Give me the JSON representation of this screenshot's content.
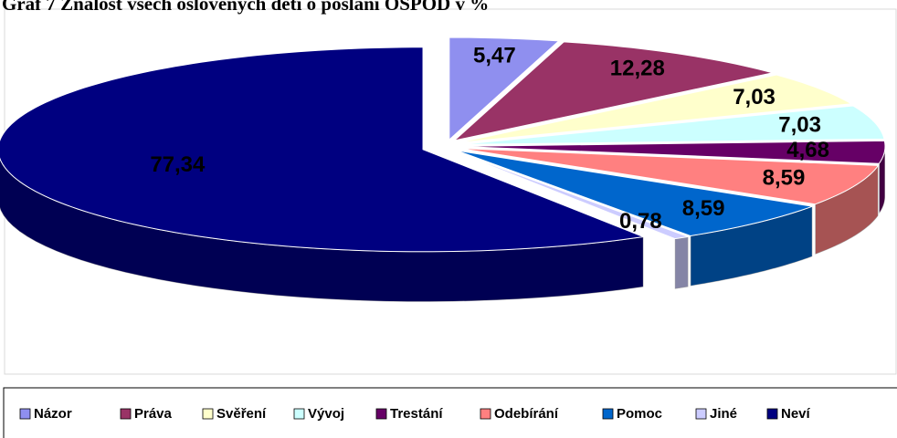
{
  "chart_data": {
    "type": "pie",
    "title": "Graf 7 Znalost všech oslovených dětí o poslání OSPOD v %",
    "categories": [
      "Názor",
      "Práva",
      "Svěření",
      "Vývoj",
      "Trestání",
      "Odebírání",
      "Pomoc",
      "Jiné",
      "Neví"
    ],
    "values": [
      5.47,
      12.28,
      7.03,
      7.03,
      4.68,
      8.59,
      8.59,
      0.78,
      77.34
    ],
    "value_labels": [
      "5,47",
      "12,28",
      "7,03",
      "7,03",
      "4,68",
      "8,59",
      "8,59",
      "0,78",
      "77,34"
    ],
    "colors": [
      "#8f8fef",
      "#993366",
      "#ffffcc",
      "#ccffff",
      "#660066",
      "#ff8080",
      "#0066cc",
      "#ccccff",
      "#000080"
    ],
    "legend": "bottom"
  }
}
